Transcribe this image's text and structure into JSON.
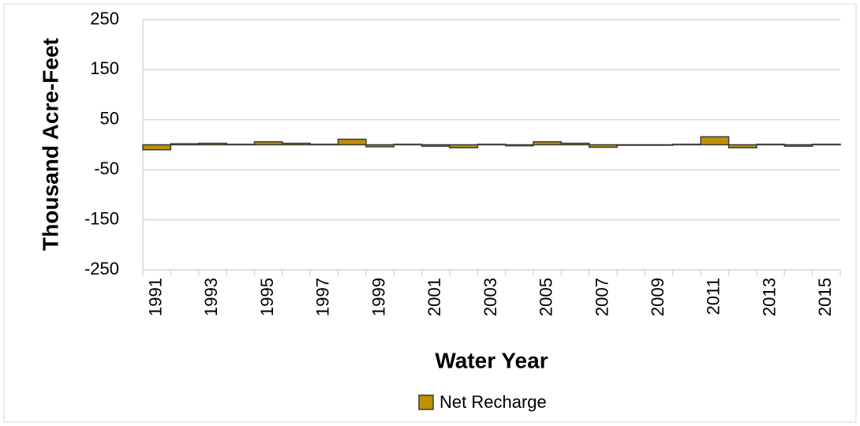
{
  "chart_data": {
    "type": "bar",
    "x_label": "Water Year",
    "y_label": "Thousand Acre-Feet",
    "categories": [
      "1991",
      null,
      "1993",
      null,
      "1995",
      null,
      "1997",
      null,
      "1999",
      null,
      "2001",
      null,
      "2003",
      null,
      "2005",
      null,
      "2007",
      null,
      "2009",
      null,
      "2011",
      null,
      "2013",
      null,
      "2015"
    ],
    "series": [
      {
        "name": "Net Recharge",
        "color": "#bf9000",
        "values": [
          -10,
          2,
          3,
          1,
          6,
          3,
          1,
          11,
          -4,
          1,
          -3,
          -6,
          1,
          -2,
          6,
          3,
          -5,
          -1,
          -1,
          1,
          16,
          -6,
          1,
          -3,
          1
        ]
      }
    ],
    "ylim": [
      -250,
      250
    ],
    "yticks": [
      -250,
      -150,
      -50,
      50,
      150,
      250
    ],
    "grid": true,
    "legend": "bottom"
  }
}
